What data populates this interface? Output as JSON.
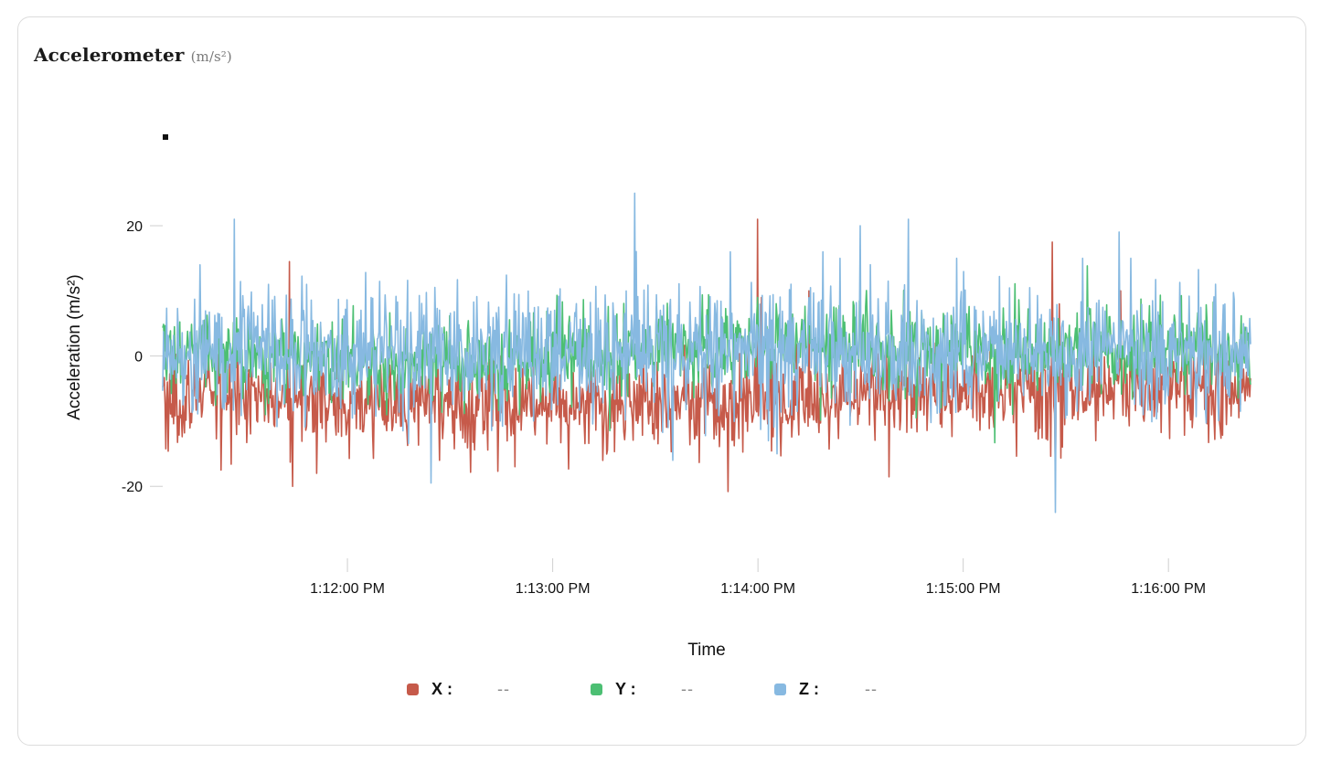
{
  "card": {
    "title": "Accelerometer",
    "unit": "(m/s²)"
  },
  "chart_data": {
    "type": "line",
    "title": "Accelerometer (m/s²)",
    "xlabel": "Time",
    "ylabel": "Acceleration (m/s²)",
    "ylim": [
      -26,
      28
    ],
    "yticks": [
      -20,
      0,
      20
    ],
    "ytick_labels": [
      "-20",
      "0",
      "20"
    ],
    "xlim_seconds": [
      -54,
      264
    ],
    "xticks_seconds": [
      0,
      60,
      120,
      180,
      240
    ],
    "xtick_labels": [
      "1:12:00 PM",
      "1:13:00 PM",
      "1:14:00 PM",
      "1:15:00 PM",
      "1:16:00 PM"
    ],
    "series": [
      {
        "name": "X",
        "color": "#c65a4a",
        "baseline": -6,
        "noise": 4.5,
        "spikes": [
          [
            -37,
            -17.5
          ],
          [
            -17,
            14.5
          ],
          [
            -16,
            -20
          ],
          [
            -9,
            16
          ],
          [
            -9,
            -18
          ],
          [
            27,
            -16
          ],
          [
            120,
            21
          ],
          [
            121,
            9
          ],
          [
            135,
            10
          ],
          [
            206,
            17.5
          ],
          [
            208,
            8
          ],
          [
            226,
            10
          ]
        ]
      },
      {
        "name": "Y",
        "color": "#4cbf73",
        "baseline": 1,
        "noise": 4,
        "spikes": [
          [
            120,
            9
          ],
          [
            135,
            7
          ],
          [
            229,
            7
          ]
        ]
      },
      {
        "name": "Z",
        "color": "#87b9e1",
        "baseline": 0.5,
        "noise": 6,
        "spikes": [
          [
            -43,
            14
          ],
          [
            -33,
            21
          ],
          [
            -23,
            11
          ],
          [
            -12,
            11
          ],
          [
            84,
            25
          ],
          [
            95,
            -16
          ],
          [
            112,
            16
          ],
          [
            123,
            -13
          ],
          [
            139,
            16
          ],
          [
            150,
            20
          ],
          [
            164,
            21
          ],
          [
            178,
            15
          ],
          [
            207,
            -24
          ],
          [
            215,
            15
          ],
          [
            229,
            15
          ]
        ]
      }
    ],
    "legend": [
      {
        "name": "X",
        "label": "X :",
        "value": "--",
        "color": "#c65a4a"
      },
      {
        "name": "Y",
        "label": "Y :",
        "value": "--",
        "color": "#4cbf73"
      },
      {
        "name": "Z",
        "label": "Z :",
        "value": "--",
        "color": "#87b9e1"
      }
    ]
  }
}
